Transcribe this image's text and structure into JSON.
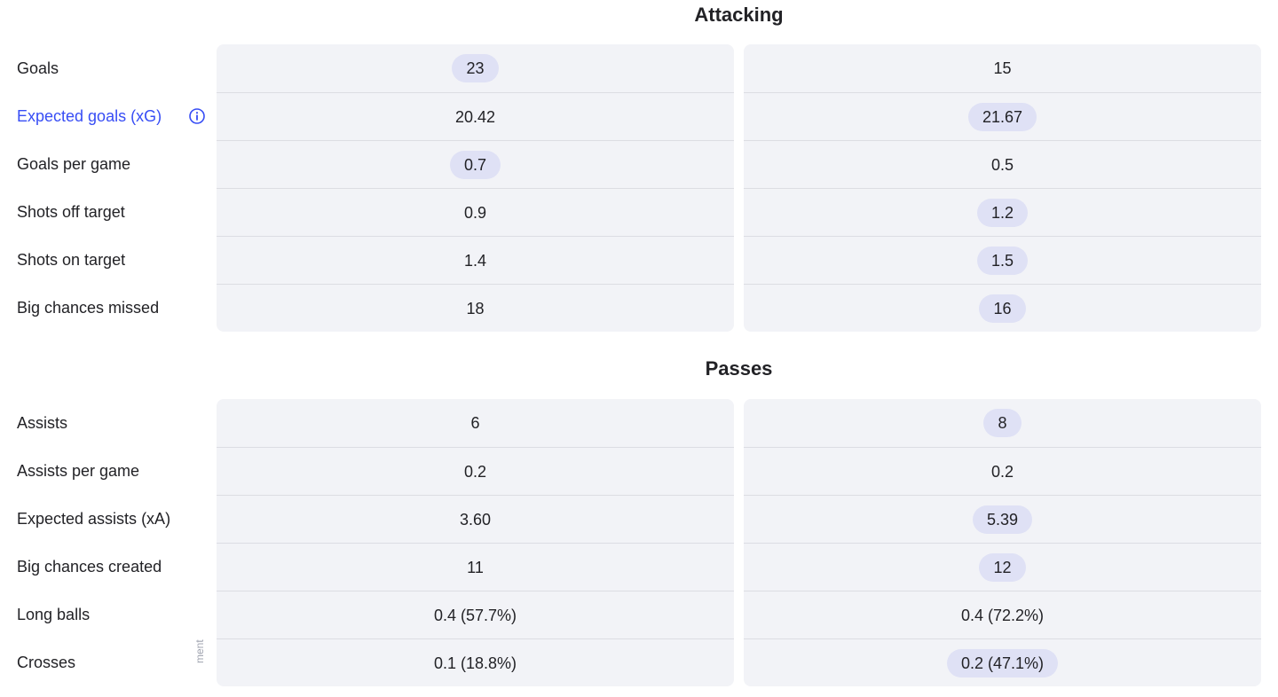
{
  "sections": [
    {
      "title": "Attacking",
      "rows": [
        {
          "label": "Goals",
          "left": "23",
          "right": "15",
          "best": "left"
        },
        {
          "label": "Expected goals (xG)",
          "left": "20.42",
          "right": "21.67",
          "best": "right",
          "active": true,
          "info_icon": "info-icon"
        },
        {
          "label": "Goals per game",
          "left": "0.7",
          "right": "0.5",
          "best": "left"
        },
        {
          "label": "Shots off target",
          "left": "0.9",
          "right": "1.2",
          "best": "right"
        },
        {
          "label": "Shots on target",
          "left": "1.4",
          "right": "1.5",
          "best": "right"
        },
        {
          "label": "Big chances missed",
          "left": "18",
          "right": "16",
          "best": "right"
        }
      ]
    },
    {
      "title": "Passes",
      "rows": [
        {
          "label": "Assists",
          "left": "6",
          "right": "8",
          "best": "right"
        },
        {
          "label": "Assists per game",
          "left": "0.2",
          "right": "0.2",
          "best": "none"
        },
        {
          "label": "Expected assists (xA)",
          "left": "3.60",
          "right": "5.39",
          "best": "right"
        },
        {
          "label": "Big chances created",
          "left": "11",
          "right": "12",
          "best": "right"
        },
        {
          "label": "Long balls",
          "left": "0.4 (57.7%)",
          "right": "0.4 (72.2%)",
          "best": "none"
        },
        {
          "label": "Crosses",
          "left": "0.1 (18.8%)",
          "right": "0.2 (47.1%)",
          "best": "right"
        }
      ]
    }
  ],
  "vertical_text": "ment",
  "colors": {
    "accent": "#374df5",
    "highlight": "#dfe1f5",
    "panel": "#f2f3f7"
  }
}
